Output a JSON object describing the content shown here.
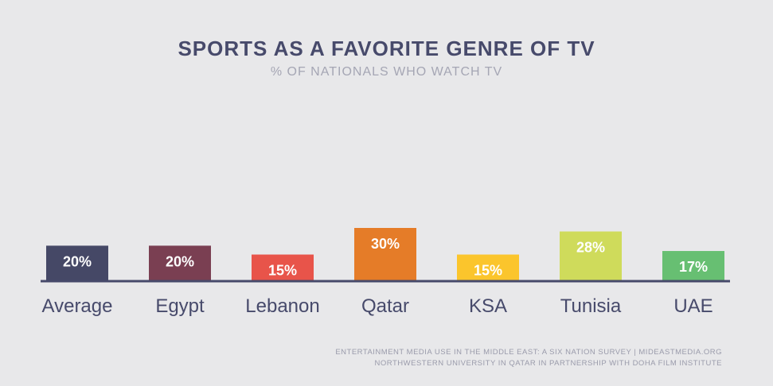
{
  "title": "SPORTS AS A FAVORITE GENRE OF TV",
  "subtitle": "% OF NATIONALS WHO WATCH TV",
  "source": {
    "line1": "ENTERTAINMENT MEDIA USE IN THE MIDDLE EAST: A SIX NATION SURVEY | MIDEASTMEDIA.ORG",
    "line2": "NORTHWESTERN UNIVERSITY IN QATAR IN PARTNERSHIP WITH DOHA FILM INSTITUTE"
  },
  "chart_data": {
    "type": "bar",
    "categories": [
      "Average",
      "Egypt",
      "Lebanon",
      "Qatar",
      "KSA",
      "Tunisia",
      "UAE"
    ],
    "values": [
      20,
      20,
      15,
      30,
      15,
      28,
      17
    ],
    "value_labels": [
      "20%",
      "20%",
      "15%",
      "30%",
      "15%",
      "28%",
      "17%"
    ],
    "colors": [
      "#454866",
      "#7a3f52",
      "#e8544a",
      "#e57c28",
      "#fbc52c",
      "#cfdb5b",
      "#67bf72"
    ],
    "axis_color": "#474a6b",
    "grid": false,
    "ylim": [
      0,
      30
    ]
  }
}
